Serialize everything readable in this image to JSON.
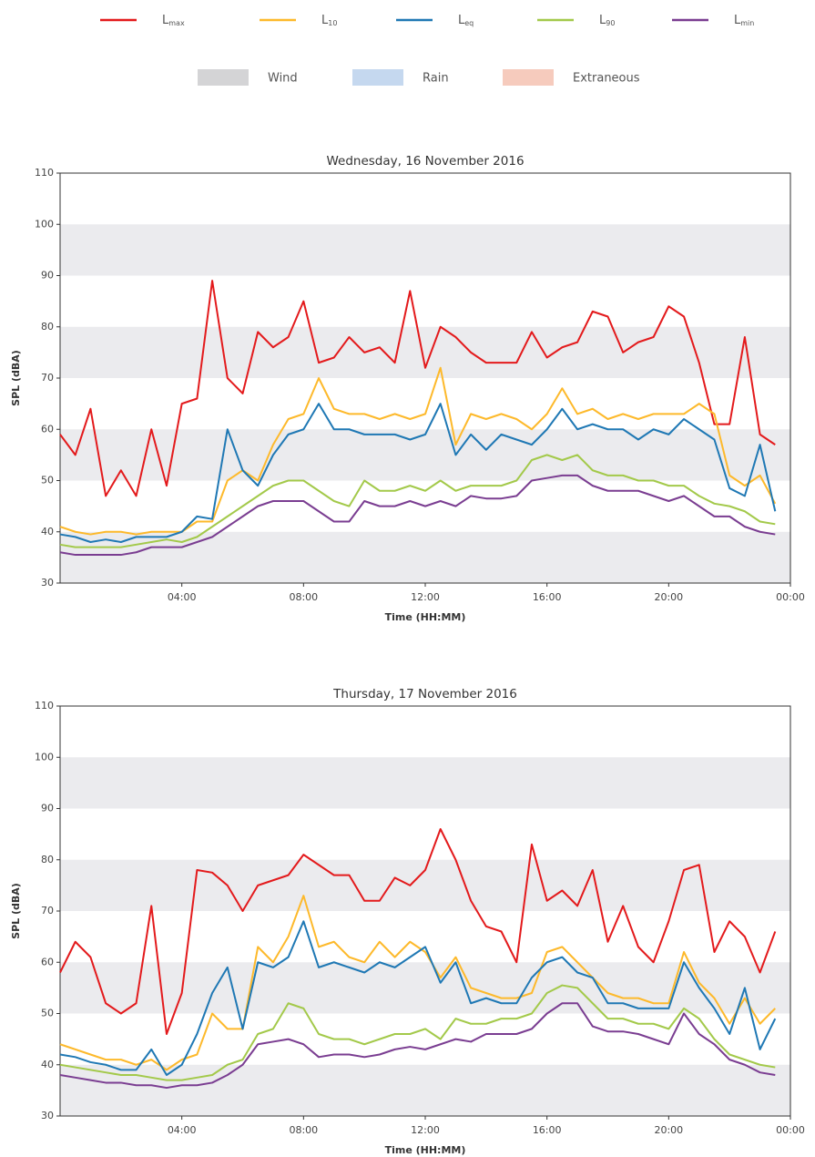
{
  "legend": {
    "series": [
      {
        "name": "Lmax",
        "color": "#e31a1c"
      },
      {
        "name": "L10",
        "color": "#fdb92b"
      },
      {
        "name": "Leq",
        "color": "#1f78b4"
      },
      {
        "name": "L90",
        "color": "#a3c94a"
      },
      {
        "name": "Lmin",
        "color": "#7a3d91"
      }
    ],
    "flags": [
      {
        "name": "Wind",
        "color": "#d4d4d6"
      },
      {
        "name": "Rain",
        "color": "#c5d8ef"
      },
      {
        "name": "Extraneous",
        "color": "#f6cbbd"
      }
    ]
  },
  "chart_data": [
    {
      "type": "line",
      "title": "Wednesday, 16 November 2016",
      "xlabel": "Time (HH:MM)",
      "ylabel": "SPL (dBA)",
      "x": [
        0,
        0.5,
        1,
        1.5,
        2,
        2.5,
        3,
        3.5,
        4,
        4.5,
        5,
        5.5,
        6,
        6.5,
        7,
        7.5,
        8,
        8.5,
        9,
        9.5,
        10,
        10.5,
        11,
        11.5,
        12,
        12.5,
        13,
        13.5,
        14,
        14.5,
        15,
        15.5,
        16,
        16.5,
        17,
        17.5,
        18,
        18.5,
        19,
        19.5,
        20,
        20.5,
        21,
        21.5,
        22,
        22.5,
        23,
        23.5
      ],
      "xlim": [
        0,
        24
      ],
      "xticks": [
        {
          "value": 4,
          "label": "04:00"
        },
        {
          "value": 8,
          "label": "08:00"
        },
        {
          "value": 12,
          "label": "12:00"
        },
        {
          "value": 16,
          "label": "16:00"
        },
        {
          "value": 20,
          "label": "20:00"
        },
        {
          "value": 24,
          "label": "00:00"
        }
      ],
      "ylim": [
        30,
        110
      ],
      "yticks": [
        30,
        40,
        50,
        60,
        70,
        80,
        90,
        100,
        110
      ],
      "series": [
        {
          "values": [
            59,
            55,
            64,
            47,
            52,
            47,
            60,
            49,
            65,
            66,
            89,
            70,
            67,
            79,
            76,
            78,
            85,
            73,
            74,
            78,
            75,
            76,
            73,
            87,
            72,
            80,
            78,
            75,
            73,
            73,
            73,
            79,
            74,
            76,
            77,
            83,
            82,
            75,
            77,
            78,
            84,
            82,
            73,
            61,
            61,
            78,
            59,
            57
          ]
        },
        {
          "values": [
            41,
            40,
            39.5,
            40,
            40,
            39.5,
            40,
            40,
            40,
            42,
            42,
            50,
            52,
            50,
            57,
            62,
            63,
            70,
            64,
            63,
            63,
            62,
            63,
            62,
            63,
            72,
            57,
            63,
            62,
            63,
            62,
            60,
            63,
            68,
            63,
            64,
            62,
            63,
            62,
            63,
            63,
            63,
            65,
            63,
            51,
            49,
            51,
            45.5
          ]
        },
        {
          "values": [
            39.5,
            39,
            38,
            38.5,
            38,
            39,
            39,
            39,
            40,
            43,
            42.5,
            60,
            52,
            49,
            55,
            59,
            60,
            65,
            60,
            60,
            59,
            59,
            59,
            58,
            59,
            65,
            55,
            59,
            56,
            59,
            58,
            57,
            60,
            64,
            60,
            61,
            60,
            60,
            58,
            60,
            59,
            62,
            60,
            58,
            48.5,
            47,
            57,
            44
          ]
        },
        {
          "values": [
            37.5,
            37,
            37,
            37,
            37,
            37.5,
            38,
            38.5,
            38,
            39,
            41,
            43,
            45,
            47,
            49,
            50,
            50,
            48,
            46,
            45,
            50,
            48,
            48,
            49,
            48,
            50,
            48,
            49,
            49,
            49,
            50,
            54,
            55,
            54,
            55,
            52,
            51,
            51,
            50,
            50,
            49,
            49,
            47,
            45.5,
            45,
            44,
            42,
            41.5
          ]
        },
        {
          "values": [
            36,
            35.5,
            35.5,
            35.5,
            35.5,
            36,
            37,
            37,
            37,
            38,
            39,
            41,
            43,
            45,
            46,
            46,
            46,
            44,
            42,
            42,
            46,
            45,
            45,
            46,
            45,
            46,
            45,
            47,
            46.5,
            46.5,
            47,
            50,
            50.5,
            51,
            51,
            49,
            48,
            48,
            48,
            47,
            46,
            47,
            45,
            43,
            43,
            41,
            40,
            39.5
          ]
        }
      ]
    },
    {
      "type": "line",
      "title": "Thursday, 17 November 2016",
      "xlabel": "Time (HH:MM)",
      "ylabel": "SPL (dBA)",
      "x": [
        0,
        0.5,
        1,
        1.5,
        2,
        2.5,
        3,
        3.5,
        4,
        4.5,
        5,
        5.5,
        6,
        6.5,
        7,
        7.5,
        8,
        8.5,
        9,
        9.5,
        10,
        10.5,
        11,
        11.5,
        12,
        12.5,
        13,
        13.5,
        14,
        14.5,
        15,
        15.5,
        16,
        16.5,
        17,
        17.5,
        18,
        18.5,
        19,
        19.5,
        20,
        20.5,
        21,
        21.5,
        22,
        22.5,
        23,
        23.5
      ],
      "xlim": [
        0,
        24
      ],
      "xticks": [
        {
          "value": 4,
          "label": "04:00"
        },
        {
          "value": 8,
          "label": "08:00"
        },
        {
          "value": 12,
          "label": "12:00"
        },
        {
          "value": 16,
          "label": "16:00"
        },
        {
          "value": 20,
          "label": "20:00"
        },
        {
          "value": 24,
          "label": "00:00"
        }
      ],
      "ylim": [
        30,
        110
      ],
      "yticks": [
        30,
        40,
        50,
        60,
        70,
        80,
        90,
        100,
        110
      ],
      "series": [
        {
          "values": [
            58,
            64,
            61,
            52,
            50,
            52,
            71,
            46,
            54,
            78,
            77.5,
            75,
            70,
            75,
            76,
            77,
            81,
            79,
            77,
            77,
            72,
            72,
            76.5,
            75,
            78,
            86,
            80,
            72,
            67,
            66,
            60,
            83,
            72,
            74,
            71,
            78,
            64,
            71,
            63,
            60,
            68,
            78,
            79,
            62,
            68,
            65,
            58,
            66
          ]
        },
        {
          "values": [
            44,
            43,
            42,
            41,
            41,
            40,
            41,
            39,
            41,
            42,
            50,
            47,
            47,
            63,
            60,
            65,
            73,
            63,
            64,
            61,
            60,
            64,
            61,
            64,
            62,
            57,
            61,
            55,
            54,
            53,
            53,
            54,
            62,
            63,
            60,
            57,
            54,
            53,
            53,
            52,
            52,
            62,
            56,
            53,
            48,
            53,
            48,
            51
          ]
        },
        {
          "values": [
            42,
            41.5,
            40.5,
            40,
            39,
            39,
            43,
            38,
            40,
            46,
            54,
            59,
            47,
            60,
            59,
            61,
            68,
            59,
            60,
            59,
            58,
            60,
            59,
            61,
            63,
            56,
            60,
            52,
            53,
            52,
            52,
            57,
            60,
            61,
            58,
            57,
            52,
            52,
            51,
            51,
            51,
            60,
            55,
            51,
            46,
            55,
            43,
            49
          ]
        },
        {
          "values": [
            40,
            39.5,
            39,
            38.5,
            38,
            38,
            37.5,
            37,
            37,
            37.5,
            38,
            40,
            41,
            46,
            47,
            52,
            51,
            46,
            45,
            45,
            44,
            45,
            46,
            46,
            47,
            45,
            49,
            48,
            48,
            49,
            49,
            50,
            54,
            55.5,
            55,
            52,
            49,
            49,
            48,
            48,
            47,
            51,
            49,
            45,
            42,
            41,
            40,
            39.5
          ]
        },
        {
          "values": [
            38,
            37.5,
            37,
            36.5,
            36.5,
            36,
            36,
            35.5,
            36,
            36,
            36.5,
            38,
            40,
            44,
            44.5,
            45,
            44,
            41.5,
            42,
            42,
            41.5,
            42,
            43,
            43.5,
            43,
            44,
            45,
            44.5,
            46,
            46,
            46,
            47,
            50,
            52,
            52,
            47.5,
            46.5,
            46.5,
            46,
            45,
            44,
            50,
            46,
            44,
            41,
            40,
            38.5,
            38
          ]
        }
      ]
    }
  ]
}
